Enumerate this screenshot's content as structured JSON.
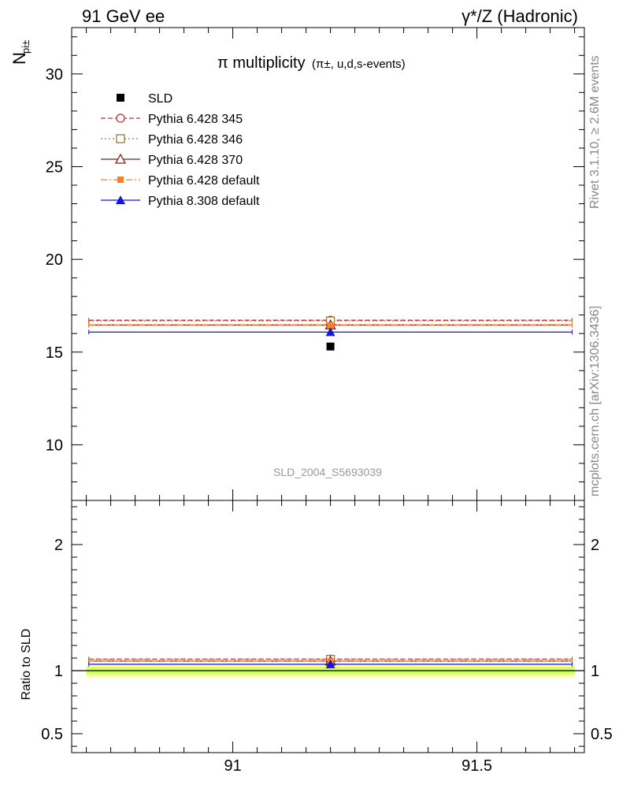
{
  "header": {
    "left": "91 GeV ee",
    "right": "γ*/Z (Hadronic)"
  },
  "side_labels": {
    "rivet": "Rivet 3.1.10, ≥ 2.6M events",
    "mcplots": "mcplots.cern.ch [arXiv:1306.3436]"
  },
  "chart_data": [
    {
      "type": "scatter",
      "title_main": "π multiplicity",
      "title_sub": "(π±, u,d,s-events)",
      "ylabel": "N",
      "ylabel_sub": "pi±",
      "ylim": [
        7,
        32.5
      ],
      "xlim": [
        90.67,
        91.72
      ],
      "yticks_major": [
        10,
        15,
        20,
        25,
        30
      ],
      "ytick_labels": [
        "10",
        "15",
        "20",
        "25",
        "30"
      ],
      "watermark": "SLD_2004_S5693039",
      "legend_position": "top-left",
      "data": {
        "name": "SLD",
        "x": 91.2,
        "y": 15.3,
        "color": "#000000",
        "marker": "square"
      },
      "series": [
        {
          "name": "Pythia 6.428 345",
          "value": 16.72,
          "color": "#c0303a",
          "marker": "open-circle",
          "dash": "6,3"
        },
        {
          "name": "Pythia 6.428 346",
          "value": 16.68,
          "color": "#9b7a3a",
          "marker": "open-square",
          "dash": "2,3"
        },
        {
          "name": "Pythia 6.428 370",
          "value": 16.46,
          "color": "#8b1a1a",
          "marker": "open-triangle",
          "dash": ""
        },
        {
          "name": "Pythia 6.428 default",
          "value": 16.45,
          "color": "#ff7f27",
          "marker": "filled-square",
          "dash": "8,3,2,3"
        },
        {
          "name": "Pythia 8.308 default",
          "value": 16.08,
          "color": "#1515e0",
          "marker": "filled-triangle",
          "dash": ""
        }
      ]
    },
    {
      "type": "scatter",
      "ylabel": "Ratio to SLD",
      "ylim": [
        0.35,
        2.35
      ],
      "xlim": [
        90.67,
        91.72
      ],
      "yticks_major": [
        0.5,
        1,
        2
      ],
      "ytick_labels": [
        "0.5",
        "1",
        "2"
      ],
      "xticks_major": [
        91,
        91.5
      ],
      "xtick_labels": [
        "91",
        "91.5"
      ],
      "band": {
        "inner": 0.028,
        "outer": 0.05,
        "inner_color": "#ccff66",
        "outer_color": "#ffff99"
      },
      "series": [
        {
          "name": "Pythia 6.428 345",
          "value": 1.092,
          "color": "#c0303a",
          "marker": "open-circle",
          "dash": "6,3"
        },
        {
          "name": "Pythia 6.428 346",
          "value": 1.09,
          "color": "#9b7a3a",
          "marker": "open-square",
          "dash": "2,3"
        },
        {
          "name": "Pythia 6.428 370",
          "value": 1.076,
          "color": "#8b1a1a",
          "marker": "open-triangle",
          "dash": ""
        },
        {
          "name": "Pythia 6.428 default",
          "value": 1.075,
          "color": "#ff7f27",
          "marker": "filled-square",
          "dash": "8,3,2,3"
        },
        {
          "name": "Pythia 8.308 default",
          "value": 1.051,
          "color": "#1515e0",
          "marker": "filled-triangle",
          "dash": ""
        }
      ]
    }
  ]
}
